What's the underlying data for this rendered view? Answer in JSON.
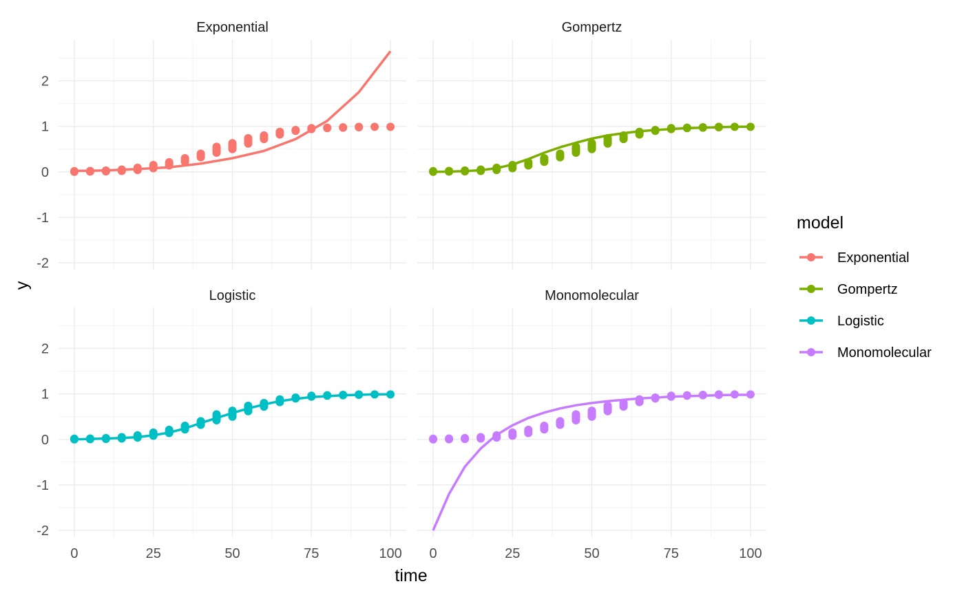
{
  "chart_data": {
    "type": "scatter",
    "facet_layout": "2x2",
    "xlabel": "time",
    "ylabel": "y",
    "xlim": [
      -5,
      105
    ],
    "ylim": [
      -2.15,
      2.9
    ],
    "x_ticks": [
      0,
      25,
      50,
      75,
      100
    ],
    "y_ticks": [
      -2,
      -1,
      0,
      1,
      2
    ],
    "grid": true,
    "legend": {
      "title": "model",
      "position": "right",
      "entries": [
        "Exponential",
        "Gompertz",
        "Logistic",
        "Monomolecular"
      ]
    },
    "point_x": [
      0,
      5,
      10,
      15,
      20,
      25,
      30,
      35,
      40,
      45,
      50,
      55,
      60,
      65,
      70,
      75,
      80,
      85,
      90,
      95,
      100
    ],
    "point_y_bands": {
      "ymin": [
        0.0,
        0.005,
        0.01,
        0.02,
        0.04,
        0.08,
        0.14,
        0.22,
        0.32,
        0.42,
        0.5,
        0.62,
        0.72,
        0.82,
        0.9,
        0.94,
        0.96,
        0.97,
        0.98,
        0.99,
        0.99
      ],
      "ymax": [
        0.015,
        0.02,
        0.03,
        0.05,
        0.09,
        0.15,
        0.21,
        0.3,
        0.4,
        0.55,
        0.63,
        0.74,
        0.8,
        0.88,
        0.92,
        0.96,
        0.97,
        0.98,
        0.99,
        0.995,
        0.995
      ]
    },
    "panels": [
      {
        "title": "Exponential",
        "color": "#F8766D",
        "curve": {
          "x": [
            0,
            10,
            20,
            30,
            40,
            50,
            60,
            70,
            80,
            90,
            100
          ],
          "y": [
            0.02,
            0.03,
            0.06,
            0.1,
            0.18,
            0.3,
            0.46,
            0.72,
            1.12,
            1.75,
            2.65
          ]
        }
      },
      {
        "title": "Gompertz",
        "color": "#7CAE00",
        "curve": {
          "x": [
            0,
            5,
            10,
            15,
            20,
            25,
            30,
            35,
            40,
            45,
            50,
            55,
            60,
            65,
            70,
            75,
            80,
            85,
            90,
            95,
            100
          ],
          "y": [
            0.0,
            0.005,
            0.015,
            0.035,
            0.08,
            0.16,
            0.28,
            0.42,
            0.54,
            0.64,
            0.73,
            0.8,
            0.85,
            0.89,
            0.92,
            0.94,
            0.96,
            0.97,
            0.98,
            0.99,
            0.99
          ]
        }
      },
      {
        "title": "Logistic",
        "color": "#00BFC4",
        "curve": {
          "x": [
            0,
            5,
            10,
            15,
            20,
            25,
            30,
            35,
            40,
            45,
            50,
            55,
            60,
            65,
            70,
            75,
            80,
            85,
            90,
            95,
            100
          ],
          "y": [
            0.0,
            0.01,
            0.02,
            0.03,
            0.05,
            0.09,
            0.15,
            0.24,
            0.36,
            0.47,
            0.58,
            0.68,
            0.77,
            0.84,
            0.89,
            0.93,
            0.95,
            0.97,
            0.98,
            0.99,
            0.99
          ]
        }
      },
      {
        "title": "Monomolecular",
        "color": "#C77CFF",
        "curve": {
          "x": [
            0,
            5,
            10,
            15,
            20,
            25,
            30,
            35,
            40,
            45,
            50,
            55,
            60,
            65,
            70,
            75,
            80,
            85,
            90,
            95,
            100
          ],
          "y": [
            -2.0,
            -1.2,
            -0.6,
            -0.2,
            0.1,
            0.31,
            0.47,
            0.59,
            0.68,
            0.75,
            0.8,
            0.84,
            0.87,
            0.9,
            0.92,
            0.94,
            0.95,
            0.96,
            0.97,
            0.98,
            0.98
          ]
        }
      }
    ]
  }
}
